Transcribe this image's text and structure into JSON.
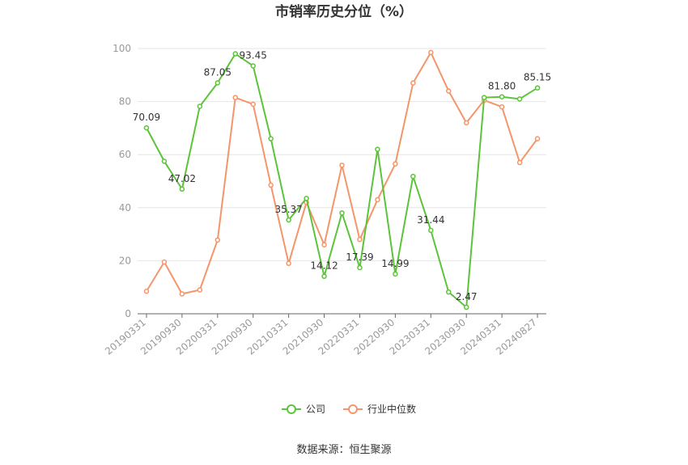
{
  "chart_data": {
    "type": "line",
    "title": "市销率历史分位（%）",
    "x": [
      "20190331",
      "20190630",
      "20190930",
      "20191231",
      "20200331",
      "20200630",
      "20200930",
      "20201231",
      "20210331",
      "20210630",
      "20210930",
      "20211231",
      "20220331",
      "20220630",
      "20220930",
      "20221231",
      "20230331",
      "20230630",
      "20230930",
      "20231231",
      "20240331",
      "20240630",
      "20240827"
    ],
    "x_tick_labels": [
      "20190331",
      "20190930",
      "20200331",
      "20200930",
      "20210331",
      "20210930",
      "20220331",
      "20220930",
      "20230331",
      "20230930",
      "20240331",
      "20240827"
    ],
    "ylim": [
      0,
      100
    ],
    "y_ticks": [
      0,
      20,
      40,
      60,
      80,
      100
    ],
    "grid": true,
    "legend_position": "bottom",
    "series": [
      {
        "name": "公司",
        "color": "#5cc33a",
        "values": [
          70.09,
          57.5,
          47.02,
          78.2,
          87.05,
          98.0,
          93.45,
          66.0,
          35.37,
          43.5,
          14.12,
          38.0,
          17.39,
          62.0,
          14.99,
          51.8,
          31.44,
          8.2,
          2.47,
          81.5,
          81.8,
          81.0,
          85.15
        ],
        "data_labels": [
          {
            "i": 0,
            "text": "70.09"
          },
          {
            "i": 2,
            "text": "47.02"
          },
          {
            "i": 4,
            "text": "87.05"
          },
          {
            "i": 6,
            "text": "93.45"
          },
          {
            "i": 8,
            "text": "35.37"
          },
          {
            "i": 10,
            "text": "14.12"
          },
          {
            "i": 12,
            "text": "17.39"
          },
          {
            "i": 14,
            "text": "14.99"
          },
          {
            "i": 16,
            "text": "31.44"
          },
          {
            "i": 18,
            "text": "2.47"
          },
          {
            "i": 20,
            "text": "81.80"
          },
          {
            "i": 22,
            "text": "85.15"
          }
        ]
      },
      {
        "name": "行业中位数",
        "color": "#f4956a",
        "values": [
          8.5,
          19.5,
          7.5,
          9.0,
          27.8,
          81.5,
          79.0,
          48.5,
          19.0,
          42.0,
          26.0,
          56.0,
          28.0,
          43.0,
          56.5,
          87.0,
          98.5,
          84.0,
          72.0,
          80.5,
          78.0,
          57.0,
          66.0
        ]
      }
    ]
  },
  "source_text": "数据来源：恒生聚源"
}
